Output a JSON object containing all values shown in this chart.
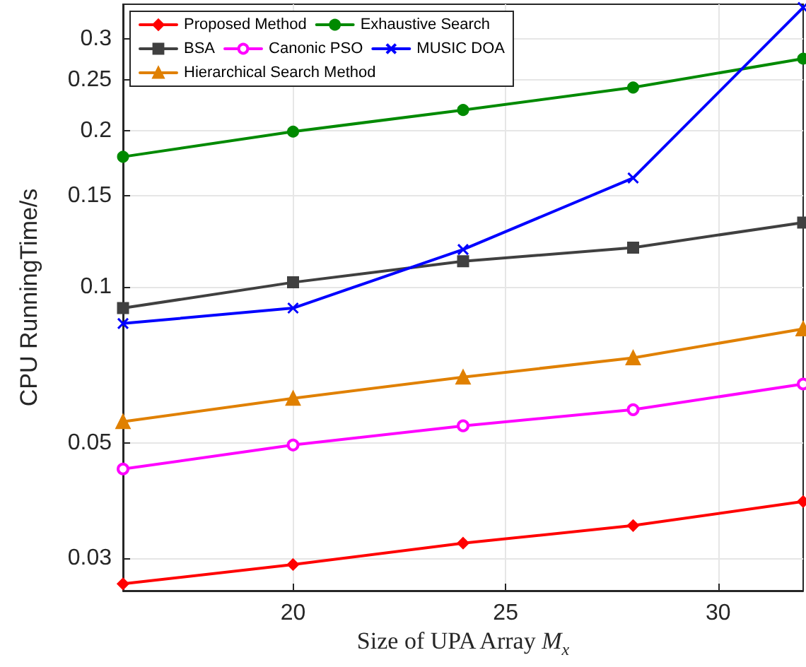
{
  "chart_data": {
    "type": "line",
    "xlabel": "Size of UPA Array M$_{x}$",
    "ylabel": "CPU RunningTime/s",
    "x": [
      16,
      20,
      24,
      28,
      32
    ],
    "series": [
      {
        "name": "Proposed Method",
        "color": "#ff0000",
        "marker": "diamond",
        "values": [
          0.0268,
          0.0292,
          0.0321,
          0.0347,
          0.0386
        ]
      },
      {
        "name": "Exhaustive Search",
        "color": "#008a00",
        "marker": "circle",
        "values": [
          0.178,
          0.199,
          0.219,
          0.242,
          0.275
        ]
      },
      {
        "name": "BSA",
        "color": "#404040",
        "marker": "square",
        "values": [
          0.091,
          0.102,
          0.112,
          0.119,
          0.133
        ]
      },
      {
        "name": "Canonic PSO",
        "color": "#ff00ff",
        "marker": "circle",
        "values": [
          0.0446,
          0.0496,
          0.054,
          0.058,
          0.065
        ]
      },
      {
        "name": "MUSIC DOA",
        "color": "#0000ff",
        "marker": "cross",
        "values": [
          0.085,
          0.091,
          0.118,
          0.162,
          0.345
        ]
      },
      {
        "name": "Hierarchical Search Method",
        "color": "#e08000",
        "marker": "triangle",
        "values": [
          0.055,
          0.061,
          0.067,
          0.073,
          0.083
        ]
      }
    ],
    "log": "y",
    "xlim": [
      16,
      32
    ],
    "xticks": [
      20,
      25,
      30
    ],
    "ylim": [
      0.026,
      0.35
    ],
    "yticks": [
      0.03,
      0.05,
      0.1,
      0.15,
      0.2,
      0.25,
      0.3
    ],
    "grid": true,
    "legend": "top left"
  }
}
